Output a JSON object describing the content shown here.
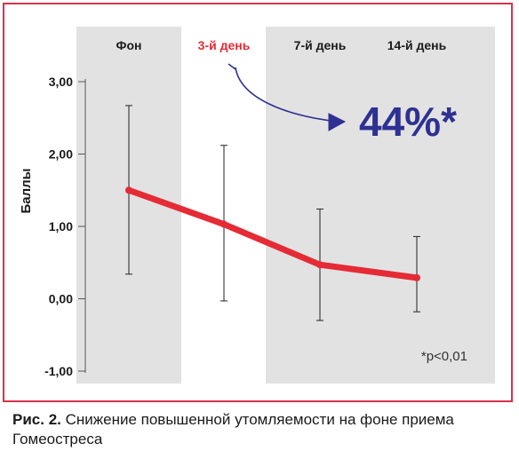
{
  "chart_data": {
    "type": "line",
    "categories": [
      "Фон",
      "3-й день",
      "7-й день",
      "14-й день"
    ],
    "highlighted_category_index": 1,
    "series": [
      {
        "values": [
          1.5,
          1.03,
          0.47,
          0.29
        ],
        "error_low": [
          0.34,
          -0.03,
          -0.3,
          -0.18
        ],
        "error_high": [
          2.67,
          2.12,
          1.24,
          0.86
        ]
      }
    ],
    "ylabel": "Баллы",
    "ylim": [
      -1.0,
      3.0
    ],
    "yticks": [
      "3,00",
      "2,00",
      "1,00",
      "0,00",
      "-1,00"
    ],
    "ytick_values": [
      3,
      2,
      1,
      0,
      -1
    ],
    "shaded_categories": [
      0,
      2,
      3
    ],
    "annotation": {
      "text": "44%*",
      "color": "#2e3192"
    },
    "footnote": "*p<0,01",
    "colors": {
      "line": "#e52b35",
      "highlight_label": "#e52b35",
      "shade": "#e2e2e2",
      "arrow": "#2e3192"
    }
  },
  "caption": {
    "label": "Рис. 2.",
    "text": " Снижение повышенной утомляемости на фоне приема Гомеостреса"
  }
}
